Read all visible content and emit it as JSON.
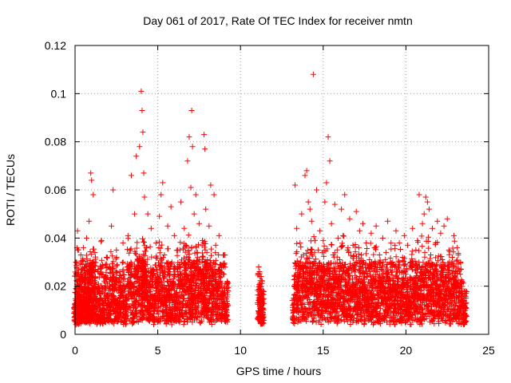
{
  "chart_data": {
    "type": "scatter",
    "title": "Day 061 of 2017, Rate Of TEC Index for receiver nmtn",
    "xlabel": "GPS time / hours",
    "ylabel": "ROTI / TECUs",
    "xlim": [
      0,
      25
    ],
    "ylim": [
      0,
      0.12
    ],
    "xticks": [
      0,
      5,
      10,
      15,
      20,
      25
    ],
    "xtick_labels": [
      "0",
      "5",
      "10",
      "15",
      "20",
      "25"
    ],
    "yticks": [
      0,
      0.02,
      0.04,
      0.06,
      0.08,
      0.1,
      0.12
    ],
    "ytick_labels": [
      "0",
      "0.02",
      "0.04",
      "0.06",
      "0.08",
      "0.1",
      "0.12"
    ],
    "grid": true,
    "legend": "none",
    "marker": "plus",
    "color": "#ff0000",
    "series": [
      {
        "points": [
          [
            0.0,
            0.012
          ],
          [
            0.05,
            0.03
          ],
          [
            0.1,
            0.017
          ],
          [
            0.15,
            0.043
          ],
          [
            0.2,
            0.01
          ],
          [
            0.25,
            0.024
          ],
          [
            0.3,
            0.015
          ],
          [
            0.35,
            0.033
          ],
          [
            0.4,
            0.02
          ],
          [
            0.45,
            0.012
          ],
          [
            0.5,
            0.036
          ],
          [
            0.55,
            0.018
          ],
          [
            0.6,
            0.028
          ],
          [
            0.65,
            0.014
          ],
          [
            0.7,
            0.04
          ],
          [
            0.75,
            0.022
          ],
          [
            0.8,
            0.016
          ],
          [
            0.85,
            0.047
          ],
          [
            0.9,
            0.025
          ],
          [
            0.95,
            0.067
          ],
          [
            1.0,
            0.064
          ],
          [
            1.05,
            0.03
          ],
          [
            1.1,
            0.058
          ],
          [
            1.15,
            0.02
          ],
          [
            1.2,
            0.034
          ],
          [
            1.3,
            0.015
          ],
          [
            1.4,
            0.027
          ],
          [
            1.5,
            0.019
          ],
          [
            1.6,
            0.039
          ],
          [
            1.7,
            0.013
          ],
          [
            1.8,
            0.024
          ],
          [
            1.9,
            0.032
          ],
          [
            2.0,
            0.017
          ],
          [
            2.1,
            0.028
          ],
          [
            2.2,
            0.045
          ],
          [
            2.3,
            0.06
          ],
          [
            2.4,
            0.021
          ],
          [
            2.5,
            0.035
          ],
          [
            2.6,
            0.014
          ],
          [
            2.7,
            0.026
          ],
          [
            2.8,
            0.019
          ],
          [
            2.9,
            0.038
          ],
          [
            3.0,
            0.023
          ],
          [
            3.1,
            0.016
          ],
          [
            3.2,
            0.041
          ],
          [
            3.3,
            0.029
          ],
          [
            3.4,
            0.066
          ],
          [
            3.5,
            0.02
          ],
          [
            3.6,
            0.05
          ],
          [
            3.7,
            0.074
          ],
          [
            3.8,
            0.031
          ],
          [
            3.9,
            0.078
          ],
          [
            4.0,
            0.101
          ],
          [
            4.05,
            0.093
          ],
          [
            4.1,
            0.084
          ],
          [
            4.15,
            0.067
          ],
          [
            4.2,
            0.057
          ],
          [
            4.3,
            0.036
          ],
          [
            4.4,
            0.05
          ],
          [
            4.5,
            0.021
          ],
          [
            4.6,
            0.044
          ],
          [
            4.7,
            0.027
          ],
          [
            4.8,
            0.016
          ],
          [
            4.9,
            0.038
          ],
          [
            5.0,
            0.024
          ],
          [
            5.1,
            0.049
          ],
          [
            5.2,
            0.058
          ],
          [
            5.3,
            0.063
          ],
          [
            5.4,
            0.033
          ],
          [
            5.5,
            0.019
          ],
          [
            5.6,
            0.045
          ],
          [
            5.7,
            0.027
          ],
          [
            5.8,
            0.053
          ],
          [
            5.9,
            0.022
          ],
          [
            6.0,
            0.041
          ],
          [
            6.1,
            0.017
          ],
          [
            6.2,
            0.035
          ],
          [
            6.3,
            0.029
          ],
          [
            6.4,
            0.055
          ],
          [
            6.5,
            0.023
          ],
          [
            6.6,
            0.044
          ],
          [
            6.7,
            0.037
          ],
          [
            6.8,
            0.072
          ],
          [
            6.9,
            0.082
          ],
          [
            7.0,
            0.061
          ],
          [
            7.05,
            0.093
          ],
          [
            7.1,
            0.078
          ],
          [
            7.2,
            0.05
          ],
          [
            7.3,
            0.058
          ],
          [
            7.4,
            0.034
          ],
          [
            7.5,
            0.046
          ],
          [
            7.6,
            0.027
          ],
          [
            7.7,
            0.039
          ],
          [
            7.8,
            0.083
          ],
          [
            7.85,
            0.077
          ],
          [
            7.9,
            0.052
          ],
          [
            8.0,
            0.031
          ],
          [
            8.1,
            0.045
          ],
          [
            8.2,
            0.062
          ],
          [
            8.3,
            0.026
          ],
          [
            8.4,
            0.058
          ],
          [
            8.5,
            0.037
          ],
          [
            8.6,
            0.021
          ],
          [
            8.7,
            0.041
          ],
          [
            8.8,
            0.029
          ],
          [
            8.9,
            0.018
          ],
          [
            9.0,
            0.033
          ],
          [
            9.1,
            0.012
          ],
          [
            9.2,
            0.022
          ],
          [
            11.1,
            0.028
          ],
          [
            11.15,
            0.02
          ],
          [
            11.2,
            0.014
          ],
          [
            11.25,
            0.024
          ],
          [
            11.3,
            0.011
          ],
          [
            11.35,
            0.018
          ],
          [
            13.2,
            0.015
          ],
          [
            13.3,
            0.062
          ],
          [
            13.4,
            0.044
          ],
          [
            13.5,
            0.028
          ],
          [
            13.6,
            0.038
          ],
          [
            13.7,
            0.05
          ],
          [
            13.8,
            0.033
          ],
          [
            13.9,
            0.066
          ],
          [
            14.0,
            0.068
          ],
          [
            14.1,
            0.055
          ],
          [
            14.2,
            0.052
          ],
          [
            14.3,
            0.047
          ],
          [
            14.4,
            0.108
          ],
          [
            14.5,
            0.039
          ],
          [
            14.6,
            0.06
          ],
          [
            14.7,
            0.035
          ],
          [
            14.8,
            0.043
          ],
          [
            14.9,
            0.028
          ],
          [
            15.0,
            0.039
          ],
          [
            15.1,
            0.055
          ],
          [
            15.2,
            0.063
          ],
          [
            15.3,
            0.082
          ],
          [
            15.4,
            0.072
          ],
          [
            15.5,
            0.046
          ],
          [
            15.6,
            0.033
          ],
          [
            15.7,
            0.054
          ],
          [
            15.8,
            0.024
          ],
          [
            15.9,
            0.04
          ],
          [
            16.0,
            0.031
          ],
          [
            16.1,
            0.052
          ],
          [
            16.2,
            0.041
          ],
          [
            16.3,
            0.058
          ],
          [
            16.4,
            0.026
          ],
          [
            16.5,
            0.036
          ],
          [
            16.6,
            0.048
          ],
          [
            16.7,
            0.02
          ],
          [
            16.8,
            0.037
          ],
          [
            16.9,
            0.029
          ],
          [
            17.0,
            0.051
          ],
          [
            17.1,
            0.022
          ],
          [
            17.2,
            0.043
          ],
          [
            17.3,
            0.033
          ],
          [
            17.4,
            0.046
          ],
          [
            17.5,
            0.025
          ],
          [
            17.6,
            0.038
          ],
          [
            17.7,
            0.017
          ],
          [
            17.8,
            0.031
          ],
          [
            17.9,
            0.042
          ],
          [
            18.0,
            0.024
          ],
          [
            18.1,
            0.036
          ],
          [
            18.2,
            0.045
          ],
          [
            18.3,
            0.02
          ],
          [
            18.4,
            0.033
          ],
          [
            18.5,
            0.027
          ],
          [
            18.6,
            0.04
          ],
          [
            18.7,
            0.019
          ],
          [
            18.8,
            0.034
          ],
          [
            18.9,
            0.047
          ],
          [
            19.0,
            0.023
          ],
          [
            19.1,
            0.038
          ],
          [
            19.2,
            0.03
          ],
          [
            19.3,
            0.021
          ],
          [
            19.4,
            0.043
          ],
          [
            19.5,
            0.026
          ],
          [
            19.6,
            0.038
          ],
          [
            19.7,
            0.018
          ],
          [
            19.8,
            0.032
          ],
          [
            19.9,
            0.041
          ],
          [
            20.0,
            0.025
          ],
          [
            20.1,
            0.037
          ],
          [
            20.2,
            0.016
          ],
          [
            20.3,
            0.03
          ],
          [
            20.4,
            0.044
          ],
          [
            20.5,
            0.022
          ],
          [
            20.6,
            0.035
          ],
          [
            20.7,
            0.039
          ],
          [
            20.8,
            0.058
          ],
          [
            20.9,
            0.027
          ],
          [
            21.0,
            0.046
          ],
          [
            21.1,
            0.05
          ],
          [
            21.2,
            0.057
          ],
          [
            21.3,
            0.055
          ],
          [
            21.4,
            0.052
          ],
          [
            21.5,
            0.033
          ],
          [
            21.6,
            0.044
          ],
          [
            21.7,
            0.025
          ],
          [
            21.8,
            0.038
          ],
          [
            21.9,
            0.047
          ],
          [
            22.0,
            0.02
          ],
          [
            22.1,
            0.042
          ],
          [
            22.2,
            0.031
          ],
          [
            22.3,
            0.045
          ],
          [
            22.4,
            0.024
          ],
          [
            22.5,
            0.048
          ],
          [
            22.6,
            0.035
          ],
          [
            22.7,
            0.018
          ],
          [
            22.8,
            0.032
          ],
          [
            22.9,
            0.041
          ],
          [
            23.0,
            0.026
          ],
          [
            23.1,
            0.036
          ],
          [
            23.2,
            0.02
          ],
          [
            23.3,
            0.03
          ],
          [
            23.4,
            0.022
          ],
          [
            23.5,
            0.012
          ],
          [
            23.6,
            0.018
          ]
        ]
      }
    ]
  }
}
